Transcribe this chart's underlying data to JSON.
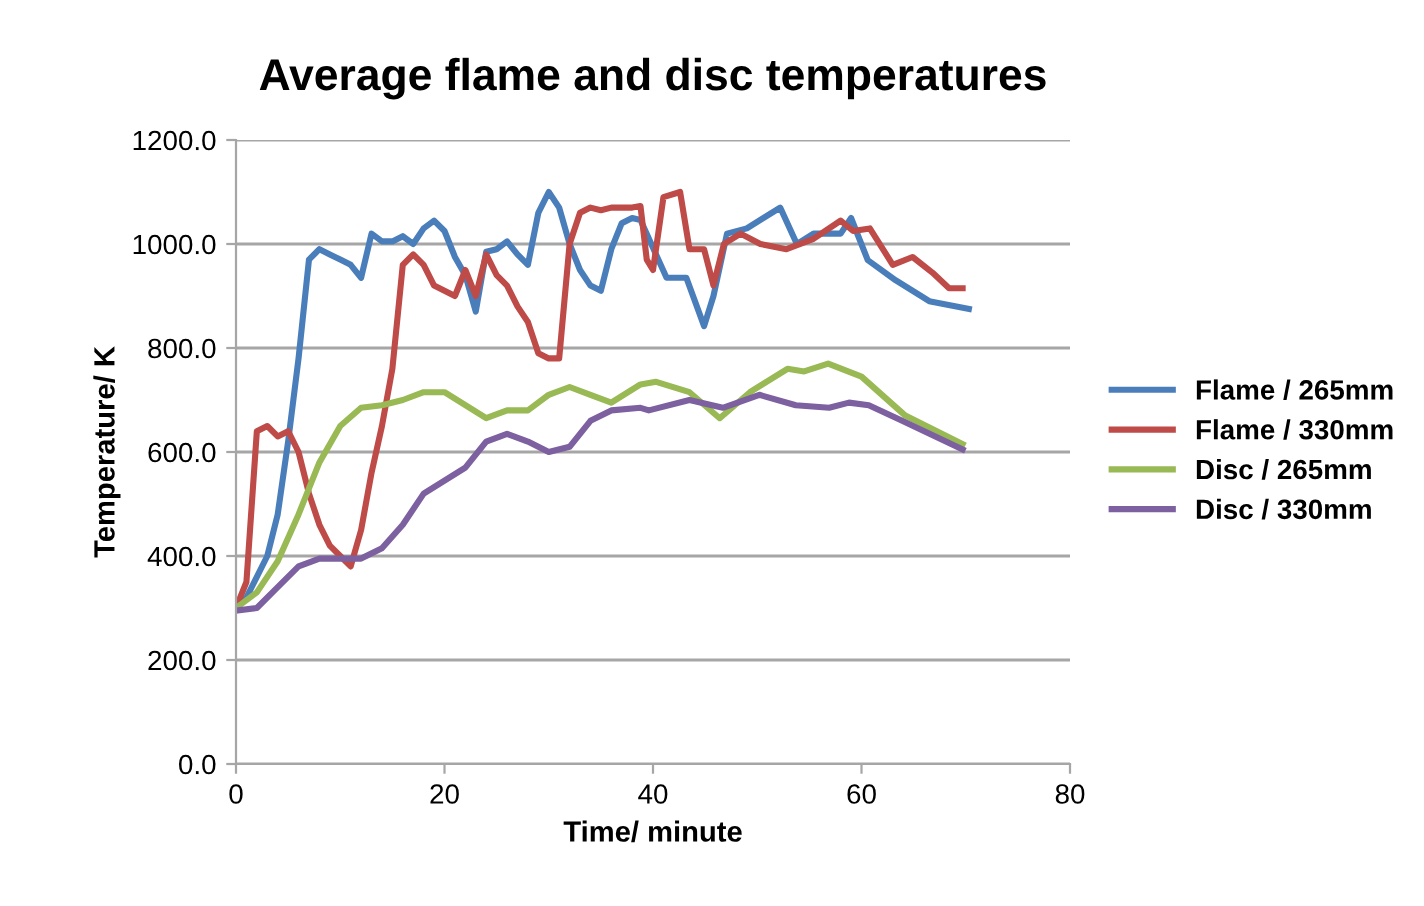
{
  "chart_data": {
    "type": "line",
    "title": "Average flame and disc temperatures",
    "xlabel": "Time/ minute",
    "ylabel": "Temperature/ K",
    "xlim": [
      0,
      80
    ],
    "xticks": [
      0,
      20,
      40,
      60,
      80
    ],
    "ylim": [
      0,
      1200
    ],
    "yticks": [
      {
        "value": 0,
        "label": "0.0"
      },
      {
        "value": 200,
        "label": "200.0"
      },
      {
        "value": 400,
        "label": "400.0"
      },
      {
        "value": 600,
        "label": "600.0"
      },
      {
        "value": 800,
        "label": "800.0"
      },
      {
        "value": 1000,
        "label": "1000.0"
      },
      {
        "value": 1200,
        "label": "1200.0"
      }
    ],
    "grid": "y",
    "legend": "right",
    "marker": "none",
    "line_style": "solid",
    "series": [
      {
        "name": "Flame / 265mm",
        "color": "#4a7ebb",
        "x": [
          0,
          1,
          2,
          3,
          4,
          5,
          6,
          7,
          8,
          9,
          10,
          11,
          12,
          13,
          14,
          15,
          16,
          17,
          18,
          19,
          20,
          21,
          22,
          23,
          24,
          25,
          26,
          27,
          28,
          29,
          30,
          31,
          32,
          33,
          34,
          35,
          36,
          37,
          38,
          38.8,
          41.3,
          43.2,
          44.9,
          45.8,
          47.1,
          49,
          52.2,
          53.8,
          55.4,
          58,
          59,
          60.6,
          63.3,
          66.5,
          70.3
        ],
        "values": [
          300,
          320,
          360,
          400,
          480,
          620,
          780,
          970,
          990,
          980,
          970,
          960,
          935,
          1020,
          1005,
          1005,
          1015,
          1000,
          1030,
          1045,
          1025,
          975,
          940,
          870,
          985,
          990,
          1005,
          980,
          960,
          1060,
          1100,
          1070,
          1000,
          950,
          920,
          910,
          990,
          1040,
          1050,
          1046,
          935,
          935,
          842,
          900,
          1020,
          1030,
          1070,
          1000,
          1020,
          1020,
          1050,
          969,
          930,
          890,
          875
        ]
      },
      {
        "name": "Flame / 330mm",
        "color": "#be4b48",
        "x": [
          0,
          1,
          2,
          3,
          4,
          5,
          6,
          7,
          8,
          9,
          10,
          11,
          12,
          13,
          14,
          15,
          16,
          17,
          18,
          19,
          20,
          21,
          22,
          23,
          24,
          25,
          26,
          27,
          28,
          29,
          30,
          31,
          32,
          33,
          34,
          35,
          36,
          37,
          38,
          38.8,
          39.4,
          40,
          41,
          42.6,
          43.5,
          44.9,
          45.8,
          46.8,
          48.4,
          50.3,
          52.8,
          55.4,
          58,
          59.2,
          60.8,
          63,
          64.9,
          66.8,
          68.4,
          69.7
        ],
        "values": [
          300,
          350,
          640,
          650,
          630,
          640,
          600,
          520,
          460,
          420,
          400,
          380,
          450,
          560,
          650,
          760,
          960,
          980,
          960,
          920,
          910,
          900,
          950,
          900,
          980,
          940,
          920,
          880,
          850,
          790,
          780,
          780,
          1000,
          1060,
          1070,
          1065,
          1070,
          1070,
          1070,
          1073,
          970,
          950,
          1090,
          1100,
          990,
          990,
          920,
          1000,
          1020,
          1000,
          990,
          1010,
          1045,
          1025,
          1030,
          960,
          975,
          945,
          915,
          915
        ]
      },
      {
        "name": "Disc / 265mm",
        "color": "#98b954",
        "x": [
          0,
          2,
          4,
          6,
          8,
          10,
          12,
          14,
          16,
          18,
          20,
          22,
          24,
          26,
          28,
          30,
          32,
          34,
          36,
          38.8,
          40.3,
          43.5,
          46.4,
          49.3,
          52.9,
          54.5,
          56.8,
          60,
          64.2,
          69.7
        ],
        "values": [
          300,
          330,
          390,
          480,
          580,
          650,
          685,
          690,
          700,
          715,
          715,
          690,
          665,
          680,
          680,
          710,
          725,
          710,
          695,
          730,
          735,
          715,
          665,
          715,
          760,
          755,
          770,
          745,
          670,
          615
        ]
      },
      {
        "name": "Disc / 330mm",
        "color": "#7d60a0",
        "x": [
          0,
          2,
          4,
          6,
          8,
          10,
          12,
          14,
          16,
          18,
          20,
          22,
          24,
          26,
          28,
          30,
          32,
          34,
          36,
          38.8,
          39.6,
          43.5,
          46.7,
          50.2,
          53.7,
          56.9,
          58.8,
          60.7,
          63.9,
          69.7
        ],
        "values": [
          295,
          300,
          340,
          380,
          395,
          395,
          395,
          415,
          460,
          520,
          545,
          570,
          620,
          635,
          620,
          600,
          610,
          660,
          680,
          685,
          680,
          700,
          685,
          710,
          690,
          685,
          695,
          690,
          660,
          605
        ]
      }
    ]
  }
}
